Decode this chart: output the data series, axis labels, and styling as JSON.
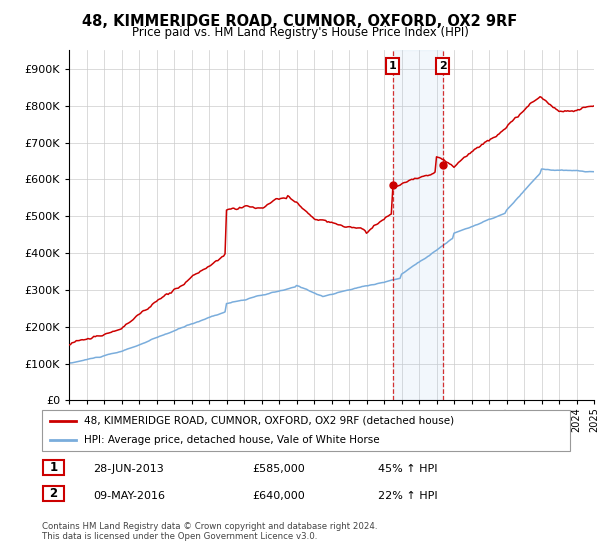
{
  "title": "48, KIMMERIDGE ROAD, CUMNOR, OXFORD, OX2 9RF",
  "subtitle": "Price paid vs. HM Land Registry's House Price Index (HPI)",
  "legend_line1": "48, KIMMERIDGE ROAD, CUMNOR, OXFORD, OX2 9RF (detached house)",
  "legend_line2": "HPI: Average price, detached house, Vale of White Horse",
  "transaction1_date": "28-JUN-2013",
  "transaction1_price": 585000,
  "transaction1_note": "45% ↑ HPI",
  "transaction2_date": "09-MAY-2016",
  "transaction2_price": 640000,
  "transaction2_note": "22% ↑ HPI",
  "footer": "Contains HM Land Registry data © Crown copyright and database right 2024.\nThis data is licensed under the Open Government Licence v3.0.",
  "hpi_color": "#7aaddc",
  "price_color": "#cc0000",
  "background_color": "#ffffff",
  "grid_color": "#cccccc",
  "ylim": [
    0,
    950000
  ],
  "yticks": [
    0,
    100000,
    200000,
    300000,
    400000,
    500000,
    600000,
    700000,
    800000,
    900000
  ],
  "transaction1_x": 2013.49,
  "transaction2_x": 2016.36
}
